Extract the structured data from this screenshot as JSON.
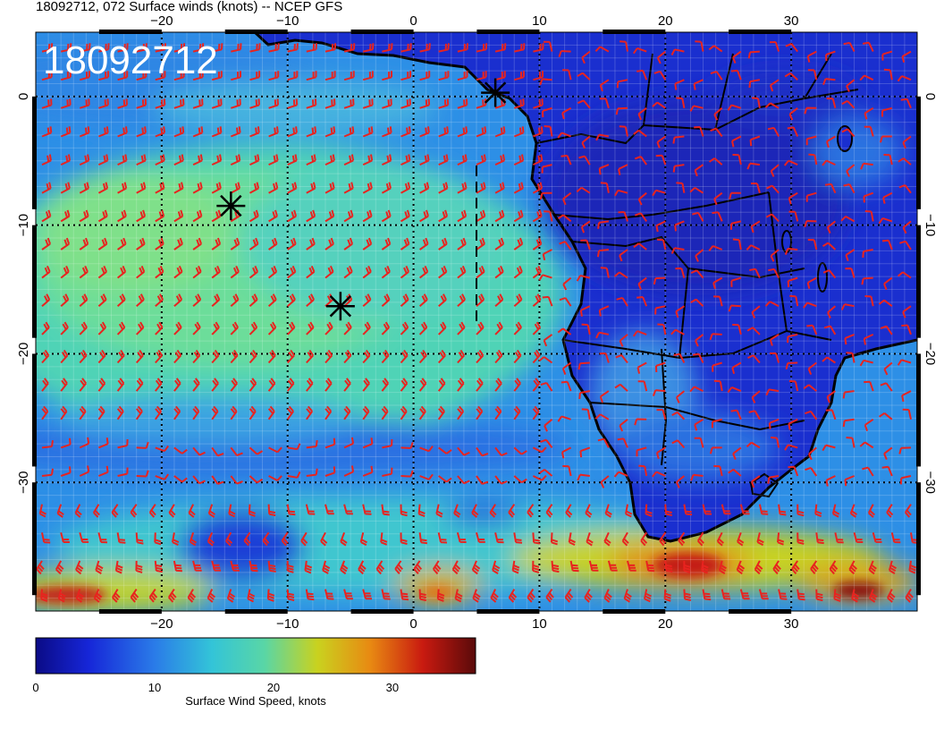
{
  "header": {
    "title": "18092712, 072 Surface winds (knots) -- NCEP GFS",
    "datestamp": "18092712"
  },
  "map": {
    "lon_range": [
      -30,
      40
    ],
    "lat_range": [
      -40,
      5
    ],
    "lon_ticks": [
      "-20",
      "-10",
      "0",
      "10",
      "20",
      "30"
    ],
    "lat_ticks": [
      "0",
      "-10",
      "-20",
      "-30"
    ],
    "lon_tick_values": [
      -20,
      -10,
      0,
      10,
      20,
      30
    ],
    "lat_tick_values": [
      0,
      -10,
      -20,
      -30
    ],
    "coastline_color": "#000000",
    "barb_color": "#e8231f",
    "markers": [
      {
        "name": "storm-marker-1",
        "lon": 6.5,
        "lat": 0.3
      },
      {
        "name": "storm-marker-2",
        "lon": -14.5,
        "lat": -8.5
      },
      {
        "name": "storm-marker-3",
        "lon": -5.8,
        "lat": -16.3
      }
    ]
  },
  "colorbar": {
    "label": "Surface Wind Speed, knots",
    "ticks": [
      "0",
      "10",
      "20",
      "30"
    ],
    "tick_values": [
      0,
      10,
      20,
      30
    ],
    "range": [
      0,
      37
    ],
    "colors": [
      "#0b0b86",
      "#1626d8",
      "#2a7be8",
      "#33c4d8",
      "#59d6a6",
      "#c9d21f",
      "#e88a12",
      "#c91a10",
      "#5a0a0a"
    ]
  }
}
